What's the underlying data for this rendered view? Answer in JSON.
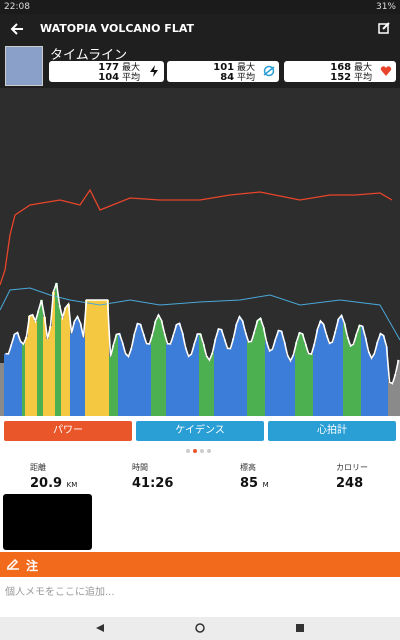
{
  "status_bar": {
    "time": "22:08",
    "battery": "31%"
  },
  "header": {
    "title": "WATOPIA VOLCANO FLAT"
  },
  "timeline": {
    "title": "タイムライン",
    "cards": [
      {
        "max": 177,
        "max_label": "最大",
        "avg": 104,
        "avg_label": "平均"
      },
      {
        "max": 101,
        "max_label": "最大",
        "avg": 84,
        "avg_label": "平均"
      },
      {
        "max": 168,
        "max_label": "最大",
        "avg": 152,
        "avg_label": "平均"
      }
    ]
  },
  "tabs": [
    "パワー",
    "ケイデンス",
    "心拍計"
  ],
  "stats": [
    {
      "label": "距離",
      "value": 20.9,
      "unit": "KM"
    },
    {
      "label": "時間",
      "value": "41:26"
    },
    {
      "label": "標高",
      "value": 85,
      "unit": "M"
    },
    {
      "label": "カロリー",
      "value": 248
    }
  ],
  "notes": {
    "title": "注",
    "placeholder": "個人メモをここに追加..."
  }
}
